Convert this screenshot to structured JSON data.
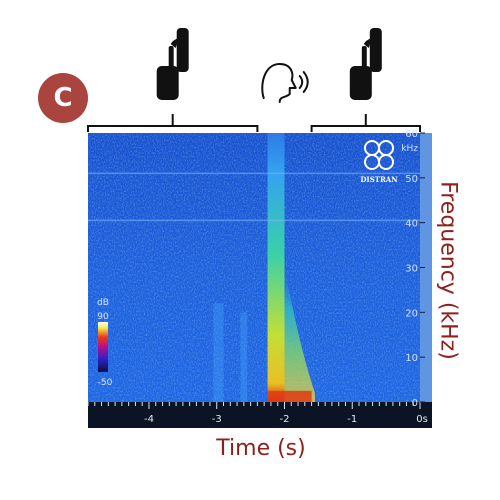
{
  "panel_label": "C",
  "logo_text": "DISTRAN",
  "chart_data": {
    "type": "heatmap",
    "xlabel": "Time (s)",
    "ylabel": "Frequency (kHz)",
    "x_ticks": [
      "-4",
      "-3",
      "-2",
      "-1",
      "0s"
    ],
    "x_tick_values": [
      -4,
      -3,
      -2,
      -1,
      0
    ],
    "xlim": [
      -4.9,
      0
    ],
    "y_ticks": [
      "0",
      "10",
      "20",
      "30",
      "40",
      "50",
      "60"
    ],
    "y_tick_values": [
      0,
      10,
      20,
      30,
      40,
      50,
      60
    ],
    "y_unit_label": "kHz",
    "ylim": [
      0,
      60
    ],
    "colorbar": {
      "label": "dB",
      "max_label": "90",
      "min_label": "-50",
      "max": 90,
      "min": -50
    },
    "annotations": [
      {
        "name": "silence-gesture",
        "x_range": [
          -4.9,
          -2.4
        ],
        "icon": "finger-on-lips-icon"
      },
      {
        "name": "speaking",
        "x_center": -2.1,
        "icon": "speaking-head-icon"
      },
      {
        "name": "silence-gesture",
        "x_range": [
          -1.6,
          0
        ],
        "icon": "finger-on-lips-icon"
      }
    ],
    "features": [
      {
        "name": "broadband-burst",
        "x_range": [
          -2.25,
          -2.0
        ],
        "peak_freq_khz": 60
      },
      {
        "name": "decaying-tail",
        "x_range": [
          -2.0,
          -1.55
        ],
        "peak_freq_khz": 30
      },
      {
        "name": "weak-transient",
        "x_range": [
          -3.05,
          -2.9
        ],
        "peak_freq_khz": 22
      },
      {
        "name": "weak-transient",
        "x_range": [
          -2.65,
          -2.55
        ],
        "peak_freq_khz": 20
      },
      {
        "name": "horizontal-tone",
        "freq_khz": 40.5
      },
      {
        "name": "horizontal-tone",
        "freq_khz": 51
      }
    ]
  },
  "colors": {
    "accent": "#a9443f",
    "label": "#8f1f1a",
    "background_blue": "#1a5ad8",
    "axis_strip": "#0b1424"
  }
}
